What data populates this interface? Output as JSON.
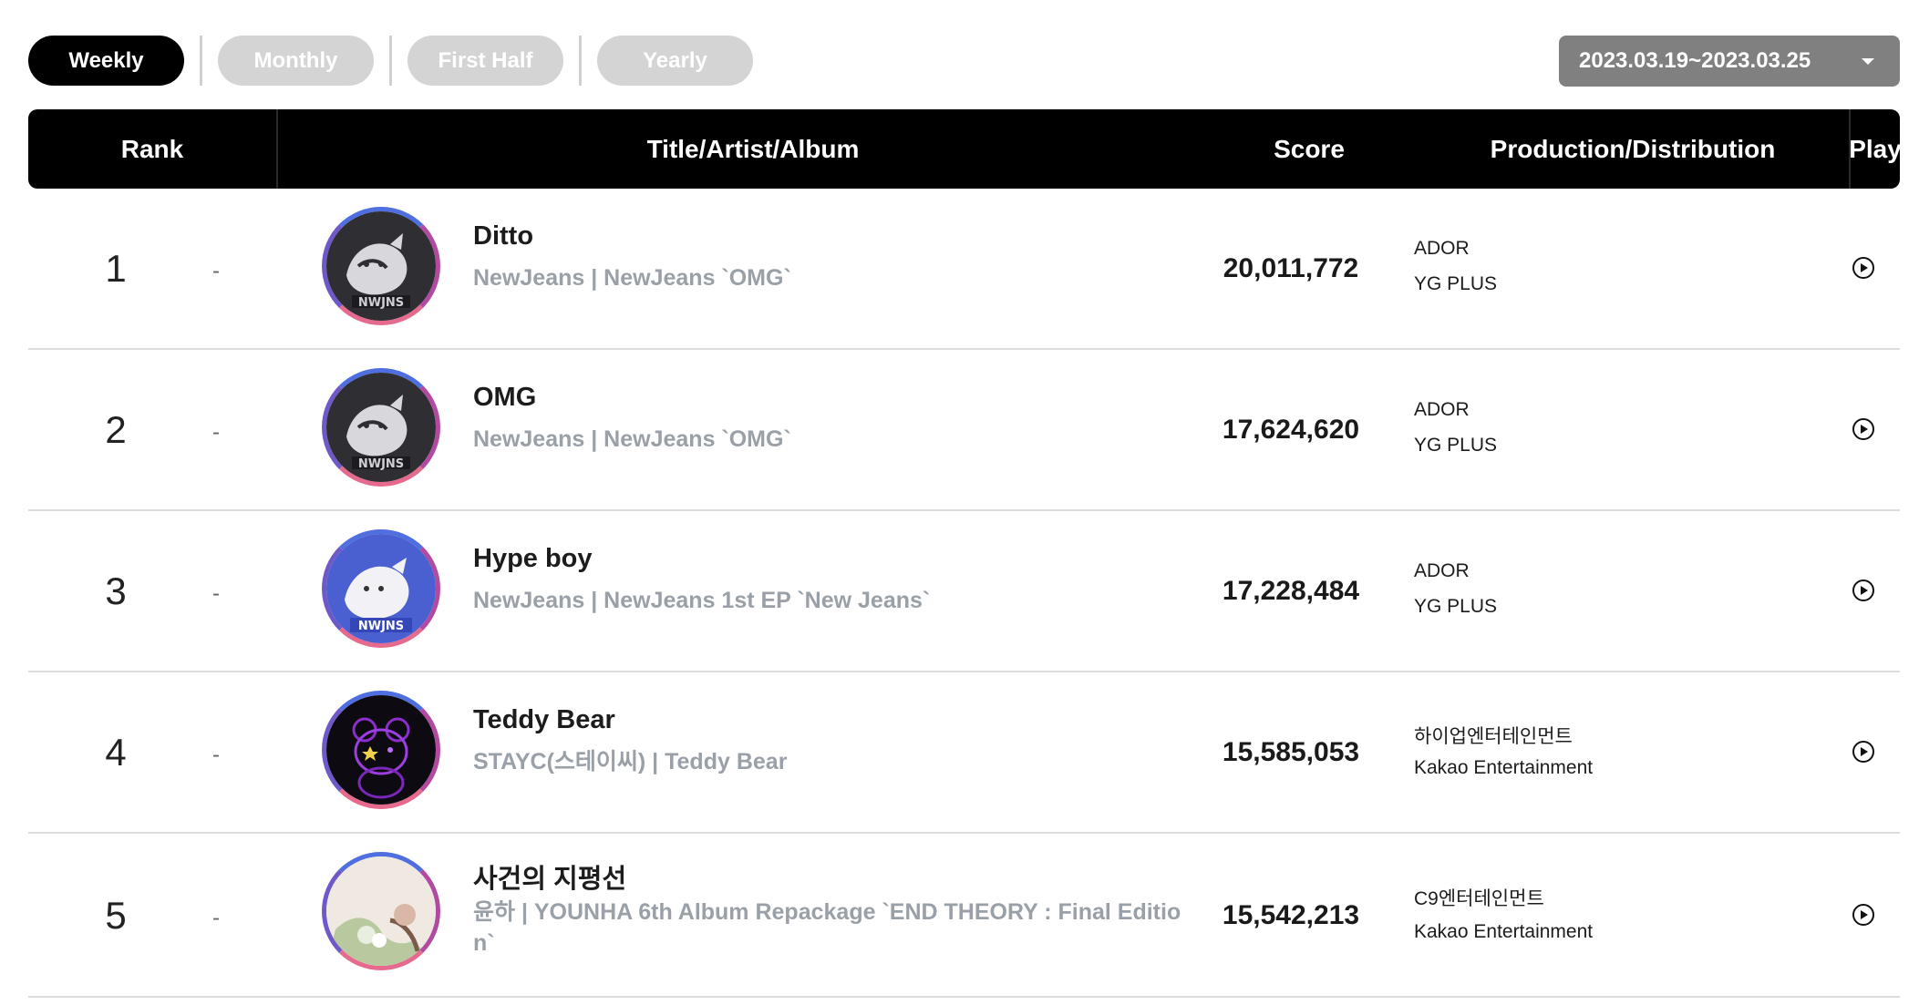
{
  "tabs": [
    {
      "label": "Weekly",
      "active": true
    },
    {
      "label": "Monthly",
      "active": false
    },
    {
      "label": "First Half",
      "active": false
    },
    {
      "label": "Yearly",
      "active": false
    }
  ],
  "period": {
    "label": "2023.03.19~2023.03.25"
  },
  "header": {
    "rank": "Rank",
    "title": "Title/Artist/Album",
    "score": "Score",
    "production": "Production/Distribution",
    "play": "Play"
  },
  "rows": [
    {
      "rank": "1",
      "change": "-",
      "title": "Ditto",
      "subtitle": "NewJeans | NewJeans `OMG`",
      "score": "20,011,772",
      "production": "ADOR",
      "distribution": "YG PLUS"
    },
    {
      "rank": "2",
      "change": "-",
      "title": "OMG",
      "subtitle": "NewJeans | NewJeans `OMG`",
      "score": "17,624,620",
      "production": "ADOR",
      "distribution": "YG PLUS"
    },
    {
      "rank": "3",
      "change": "-",
      "title": "Hype boy",
      "subtitle": "NewJeans | NewJeans 1st EP `New Jeans`",
      "score": "17,228,484",
      "production": "ADOR",
      "distribution": "YG PLUS"
    },
    {
      "rank": "4",
      "change": "-",
      "title": "Teddy Bear",
      "subtitle": "STAYC(스테이씨) | Teddy Bear",
      "score": "15,585,053",
      "production": "하이업엔터테인먼트",
      "distribution": "Kakao Entertainment"
    },
    {
      "rank": "5",
      "change": "-",
      "title": "사건의 지평선",
      "subtitle": "윤하 | YOUNHA 6th Album Repackage `END THEORY : Final Edition`",
      "score": "15,542,213",
      "production": "C9엔터테인먼트",
      "distribution": "Kakao Entertainment"
    }
  ],
  "icons": {
    "play": "play-circle-icon",
    "caret": "caret-down-icon"
  },
  "colors": {
    "active_tab": "#000000",
    "inactive_tab": "#d4d4d4",
    "period_bg": "#808080",
    "header_bg": "#000000",
    "subtitle": "#9aa0a7"
  }
}
